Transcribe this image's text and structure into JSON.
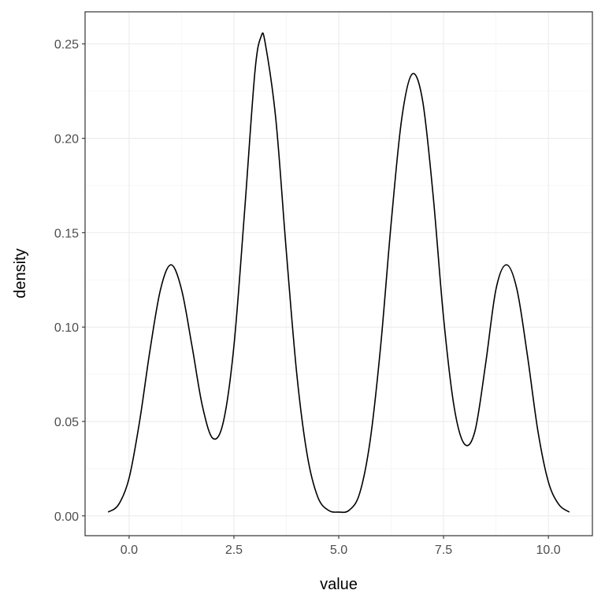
{
  "chart_data": {
    "type": "line",
    "title": "",
    "xlabel": "value",
    "ylabel": "density",
    "xlim": [
      -1.05,
      11.05
    ],
    "ylim": [
      -0.0105,
      0.267
    ],
    "xticks": [
      0.0,
      2.5,
      5.0,
      7.5,
      10.0
    ],
    "xtick_labels": [
      "0.0",
      "2.5",
      "5.0",
      "7.5",
      "10.0"
    ],
    "yticks": [
      0.0,
      0.05,
      0.1,
      0.15,
      0.2,
      0.25
    ],
    "ytick_labels": [
      "0.00",
      "0.05",
      "0.10",
      "0.15",
      "0.20",
      "0.25"
    ],
    "grid": true,
    "colors": {
      "line": "#000000",
      "grid_major": "#ebebeb",
      "grid_minor": "#f5f5f5",
      "border": "#333333"
    },
    "series": [
      {
        "x": [
          -0.5,
          -0.25,
          0,
          0.25,
          0.5,
          0.75,
          1.0,
          1.25,
          1.5,
          1.75,
          2.0,
          2.25,
          2.5,
          2.75,
          3.0,
          3.15,
          3.25,
          3.5,
          3.75,
          4.0,
          4.25,
          4.5,
          4.75,
          5.0,
          5.25,
          5.5,
          5.75,
          6.0,
          6.25,
          6.5,
          6.75,
          7.0,
          7.25,
          7.5,
          7.75,
          8.0,
          8.25,
          8.5,
          8.75,
          9.0,
          9.25,
          9.5,
          9.75,
          10.0,
          10.25,
          10.5
        ],
        "y": [
          0.002,
          0.006,
          0.02,
          0.05,
          0.088,
          0.12,
          0.133,
          0.12,
          0.09,
          0.058,
          0.041,
          0.05,
          0.09,
          0.16,
          0.235,
          0.254,
          0.25,
          0.21,
          0.14,
          0.075,
          0.032,
          0.01,
          0.003,
          0.002,
          0.003,
          0.012,
          0.04,
          0.09,
          0.155,
          0.21,
          0.234,
          0.22,
          0.17,
          0.105,
          0.058,
          0.038,
          0.045,
          0.08,
          0.12,
          0.133,
          0.12,
          0.085,
          0.045,
          0.018,
          0.006,
          0.002
        ]
      }
    ]
  }
}
